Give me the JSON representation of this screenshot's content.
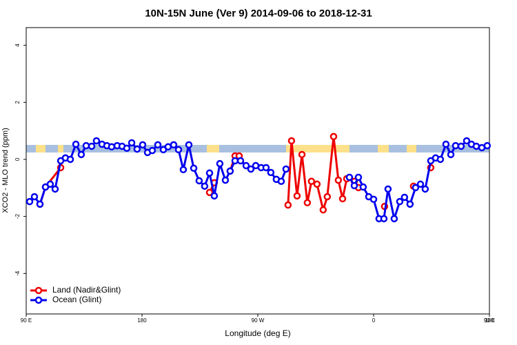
{
  "chart_data": {
    "type": "line",
    "title": "10N-15N June (Ver 9)   2014-09-06 to 2018-12-31",
    "xlabel": "Longitude (deg E)",
    "ylabel": "XCO2 - MLO trend (ppm)",
    "xlim": [
      90,
      450
    ],
    "ylim": [
      -5.42,
      4.62
    ],
    "xticks": [
      {
        "value": 90,
        "label": "90 E"
      },
      180,
      {
        "value": 270,
        "label": "90 W"
      },
      {
        "value": 360,
        "label": "0"
      },
      {
        "value": 450,
        "label": "90 E"
      },
      {
        "value": 540,
        "label": "180"
      }
    ],
    "yticks": [
      -4,
      -2,
      0,
      2,
      4
    ],
    "legend": "bottomleft",
    "series": [
      {
        "name": "Land (Nadir&Glint)",
        "color": "#ee0000",
        "x": [
          100.7,
          105,
          116.8,
          null,
          232.5,
          236.2,
          null,
          248.5,
          252.3,
          255.5,
          null,
          293.5,
          296.2,
          300.5,
          304.3,
          308.5,
          311.7,
          316,
          320.8,
          324,
          328.9,
          332.6,
          335.9,
          339.1,
          345,
          348.2,
          null,
          368.5,
          null,
          391,
          null,
          404.4
        ],
        "values": [
          -1.57,
          -0.97,
          -0.29,
          null,
          -1.16,
          -0.82,
          null,
          -0.41,
          0.12,
          0.12,
          null,
          -1.6,
          0.65,
          -1.28,
          0.17,
          -1.52,
          -0.77,
          -0.87,
          -1.77,
          -1.31,
          0.8,
          -0.73,
          -1.38,
          -0.68,
          -0.77,
          -0.99,
          null,
          -1.65,
          null,
          -0.94,
          null,
          -0.29
        ]
      },
      {
        "name": "Ocean (Glint)",
        "color": "#0000ee",
        "x": [
          92.7,
          96.4,
          100.7,
          105,
          108.7,
          112.5,
          116.8,
          120.5,
          124.3,
          128.6,
          132.8,
          136.6,
          140.9,
          144.6,
          148.9,
          152.7,
          156.4,
          160.7,
          164.5,
          168.2,
          172,
          176.2,
          180.5,
          184.3,
          188,
          192.3,
          196.6,
          200.3,
          204.6,
          208.4,
          212.1,
          216.4,
          220.2,
          224.4,
          228.7,
          232.5,
          236.2,
          240.5,
          244.8,
          248.5,
          252.3,
          256.6,
          260.9,
          264.6,
          268.4,
          272.6,
          276.4,
          280.1,
          284.4,
          288.2,
          291.9,
          null,
          341.2,
          345,
          348.2,
          351.9,
          356.2,
          360,
          364.2,
          368,
          371.2,
          376,
          380.3,
          384,
          388.3,
          392.6,
          396.4,
          400.1,
          404.4,
          408.2,
          411.9,
          416.2,
          420,
          423.7,
          428,
          432.3,
          436,
          439.8,
          444.1,
          448.3
        ],
        "values": [
          -1.48,
          -1.31,
          -1.57,
          -0.97,
          -0.87,
          -1.04,
          -0.05,
          0.05,
          0.0,
          0.53,
          0.17,
          0.48,
          0.46,
          0.65,
          0.53,
          0.48,
          0.44,
          0.48,
          0.46,
          0.39,
          0.58,
          0.36,
          0.51,
          0.24,
          0.31,
          0.51,
          0.34,
          0.44,
          0.51,
          0.34,
          -0.36,
          0.51,
          -0.31,
          -0.75,
          -0.94,
          -0.48,
          -1.28,
          -0.15,
          -0.73,
          -0.41,
          -0.05,
          -0.05,
          -0.22,
          -0.34,
          -0.22,
          -0.29,
          -0.29,
          -0.46,
          -0.7,
          -0.77,
          -0.34,
          null,
          -0.63,
          -0.92,
          -0.63,
          -0.97,
          -1.31,
          -1.4,
          -2.08,
          -2.08,
          -1.04,
          -2.08,
          -1.48,
          -1.33,
          -1.57,
          -0.99,
          -0.87,
          -1.04,
          -0.05,
          0.05,
          0.0,
          0.53,
          0.17,
          0.48,
          0.46,
          0.65,
          0.53,
          0.46,
          0.41,
          0.48
        ]
      }
    ]
  }
}
